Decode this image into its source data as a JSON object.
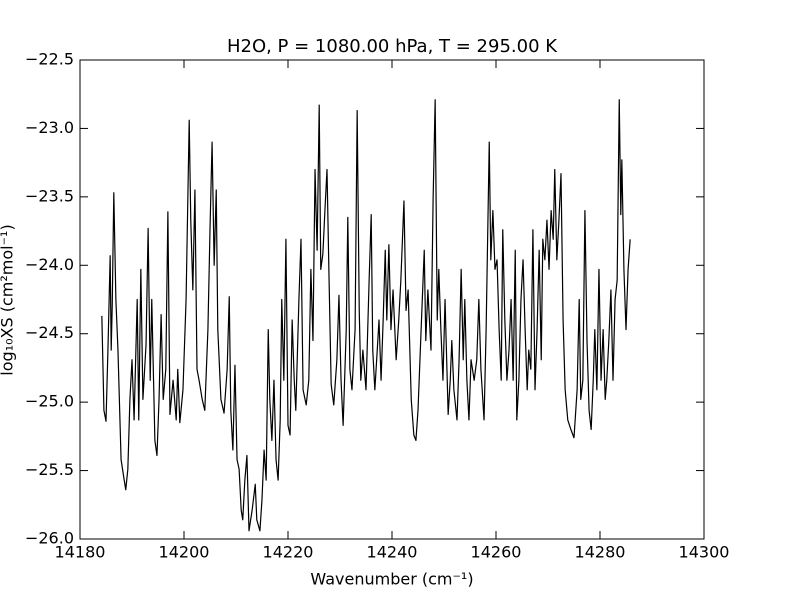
{
  "chart_data": {
    "type": "line",
    "title": "H2O, P = 1080.00 hPa, T = 295.00 K",
    "xlabel": "Wavenumber (cm⁻¹)",
    "ylabel": "log₁₀XS (cm²mol⁻¹)",
    "color": "#000000",
    "xlim": [
      14180,
      14300
    ],
    "xticks": [
      14180,
      14200,
      14220,
      14240,
      14260,
      14280,
      14300
    ],
    "ylim": [
      -26.0,
      -22.5
    ],
    "yticks": [
      {
        "value": -26.0,
        "label": "−26.0"
      },
      {
        "value": -25.5,
        "label": "−25.5"
      },
      {
        "value": -25.0,
        "label": "−25.0"
      },
      {
        "value": -24.5,
        "label": "−24.5"
      },
      {
        "value": -24.0,
        "label": "−24.0"
      },
      {
        "value": -23.5,
        "label": "−23.5"
      },
      {
        "value": -23.0,
        "label": "−23.0"
      },
      {
        "value": -22.5,
        "label": "−22.5"
      }
    ],
    "x": [
      14184.2,
      14184.6,
      14185.0,
      14185.4,
      14185.8,
      14186.0,
      14186.2,
      14186.5,
      14186.9,
      14187.3,
      14187.9,
      14188.5,
      14188.8,
      14189.2,
      14189.6,
      14190.0,
      14190.4,
      14191.0,
      14191.3,
      14191.7,
      14192.1,
      14192.7,
      14193.1,
      14193.5,
      14193.8,
      14194.4,
      14194.8,
      14195.2,
      14195.6,
      14196.0,
      14196.5,
      14196.9,
      14197.3,
      14197.9,
      14198.5,
      14198.8,
      14199.2,
      14199.8,
      14200.4,
      14201.0,
      14201.3,
      14201.7,
      14202.1,
      14202.5,
      14202.9,
      14203.5,
      14204.0,
      14204.6,
      14205.0,
      14205.4,
      14205.8,
      14206.2,
      14206.5,
      14207.1,
      14207.7,
      14208.3,
      14208.7,
      14209.0,
      14209.4,
      14209.8,
      14210.2,
      14210.6,
      14211.0,
      14211.3,
      14211.7,
      14212.1,
      14212.5,
      14213.1,
      14213.7,
      14214.0,
      14214.6,
      14215.0,
      14215.4,
      14215.8,
      14216.2,
      14216.5,
      14216.9,
      14217.3,
      14217.7,
      14218.1,
      14218.5,
      14218.8,
      14219.2,
      14219.6,
      14220.0,
      14220.4,
      14220.8,
      14221.2,
      14221.5,
      14222.1,
      14222.5,
      14222.9,
      14223.5,
      14224.0,
      14224.4,
      14224.8,
      14225.2,
      14225.6,
      14226.0,
      14226.3,
      14226.7,
      14227.1,
      14227.5,
      14227.9,
      14228.3,
      14228.8,
      14229.4,
      14229.8,
      14230.2,
      14230.6,
      14231.2,
      14231.5,
      14231.9,
      14232.3,
      14232.9,
      14233.3,
      14233.7,
      14234.0,
      14234.4,
      14235.0,
      14235.6,
      14236.0,
      14236.3,
      14236.7,
      14237.1,
      14237.5,
      14237.9,
      14238.3,
      14238.7,
      14239.0,
      14239.4,
      14239.8,
      14240.2,
      14240.8,
      14241.3,
      14241.7,
      14242.3,
      14242.7,
      14243.1,
      14243.7,
      14244.2,
      14244.6,
      14245.0,
      14245.6,
      14246.2,
      14246.5,
      14246.9,
      14247.5,
      14247.9,
      14248.3,
      14248.7,
      14249.0,
      14249.4,
      14249.8,
      14250.2,
      14250.8,
      14251.2,
      14251.5,
      14251.9,
      14252.5,
      14252.9,
      14253.3,
      14253.7,
      14254.0,
      14254.4,
      14254.8,
      14255.2,
      14255.8,
      14256.3,
      14256.7,
      14257.1,
      14257.7,
      14258.1,
      14258.7,
      14259.0,
      14259.4,
      14259.8,
      14260.2,
      14260.6,
      14261.0,
      14261.3,
      14261.7,
      14262.1,
      14262.5,
      14262.9,
      14263.3,
      14263.7,
      14264.0,
      14264.4,
      14264.8,
      14265.2,
      14265.6,
      14266.0,
      14266.3,
      14266.7,
      14267.1,
      14267.5,
      14267.9,
      14268.3,
      14268.7,
      14269.0,
      14269.4,
      14269.8,
      14270.2,
      14270.6,
      14271.0,
      14271.3,
      14271.7,
      14272.1,
      14272.5,
      14272.9,
      14273.3,
      14273.8,
      14274.4,
      14275.0,
      14275.6,
      14276.0,
      14276.3,
      14276.7,
      14277.1,
      14277.5,
      14277.9,
      14278.3,
      14278.7,
      14279.0,
      14279.4,
      14279.8,
      14280.2,
      14280.6,
      14281.0,
      14281.3,
      14281.7,
      14282.1,
      14282.5,
      14282.9,
      14283.3,
      14283.7,
      14284.0,
      14284.2,
      14284.6,
      14285.0,
      14285.4,
      14285.8
    ],
    "values": [
      -24.37,
      -25.06,
      -25.14,
      -24.58,
      -23.93,
      -24.62,
      -24.29,
      -23.47,
      -24.25,
      -24.62,
      -25.42,
      -25.57,
      -25.64,
      -25.49,
      -24.98,
      -24.69,
      -25.13,
      -24.25,
      -25.13,
      -24.03,
      -24.98,
      -24.58,
      -23.73,
      -24.84,
      -24.25,
      -25.28,
      -25.39,
      -24.98,
      -24.36,
      -24.98,
      -24.76,
      -23.61,
      -25.09,
      -24.84,
      -25.13,
      -24.76,
      -25.15,
      -24.91,
      -24.25,
      -22.94,
      -23.67,
      -24.18,
      -23.45,
      -24.76,
      -24.84,
      -24.98,
      -25.06,
      -24.47,
      -23.74,
      -23.1,
      -24.0,
      -23.45,
      -24.47,
      -24.98,
      -25.08,
      -24.76,
      -24.23,
      -25.06,
      -25.35,
      -24.73,
      -25.42,
      -25.49,
      -25.79,
      -25.86,
      -25.57,
      -25.39,
      -25.94,
      -25.79,
      -25.6,
      -25.86,
      -25.94,
      -25.71,
      -25.35,
      -25.57,
      -24.47,
      -24.98,
      -25.28,
      -24.84,
      -25.42,
      -25.57,
      -25.13,
      -24.25,
      -24.84,
      -23.81,
      -25.17,
      -25.24,
      -24.4,
      -24.84,
      -25.06,
      -24.25,
      -23.81,
      -24.91,
      -25.02,
      -24.84,
      -24.03,
      -24.55,
      -23.3,
      -23.89,
      -22.83,
      -24.03,
      -23.92,
      -23.6,
      -23.3,
      -24.11,
      -24.87,
      -25.02,
      -24.69,
      -24.22,
      -24.84,
      -25.17,
      -24.47,
      -23.65,
      -24.76,
      -24.91,
      -24.47,
      -22.87,
      -24.33,
      -24.84,
      -24.62,
      -24.91,
      -24.11,
      -23.63,
      -24.62,
      -24.91,
      -24.66,
      -24.4,
      -24.84,
      -24.4,
      -23.89,
      -24.4,
      -23.85,
      -24.47,
      -24.18,
      -24.69,
      -24.4,
      -24.11,
      -23.53,
      -24.33,
      -24.18,
      -24.98,
      -25.24,
      -25.28,
      -25.06,
      -24.47,
      -23.89,
      -24.55,
      -24.18,
      -24.62,
      -23.53,
      -22.79,
      -24.4,
      -24.03,
      -24.47,
      -24.84,
      -24.25,
      -25.09,
      -24.84,
      -24.55,
      -24.91,
      -25.13,
      -24.69,
      -24.03,
      -24.69,
      -24.25,
      -24.84,
      -25.13,
      -24.69,
      -24.84,
      -24.69,
      -24.25,
      -24.76,
      -25.13,
      -24.47,
      -23.1,
      -23.96,
      -23.6,
      -24.03,
      -23.96,
      -24.47,
      -24.84,
      -23.74,
      -24.4,
      -24.84,
      -24.62,
      -24.25,
      -24.84,
      -23.89,
      -25.13,
      -24.84,
      -24.25,
      -23.96,
      -24.47,
      -24.91,
      -24.62,
      -24.76,
      -23.74,
      -24.91,
      -24.47,
      -23.89,
      -24.69,
      -23.81,
      -23.96,
      -23.67,
      -24.03,
      -23.6,
      -23.81,
      -23.3,
      -23.96,
      -23.67,
      -23.33,
      -24.4,
      -24.91,
      -25.13,
      -25.2,
      -25.26,
      -24.91,
      -24.25,
      -24.98,
      -24.84,
      -23.6,
      -24.55,
      -25.06,
      -25.2,
      -24.84,
      -24.47,
      -24.91,
      -24.03,
      -24.84,
      -24.47,
      -24.98,
      -24.84,
      -24.55,
      -24.18,
      -24.84,
      -24.25,
      -24.11,
      -22.79,
      -23.63,
      -23.23,
      -24.03,
      -24.47,
      -24.03,
      -23.81
    ]
  }
}
